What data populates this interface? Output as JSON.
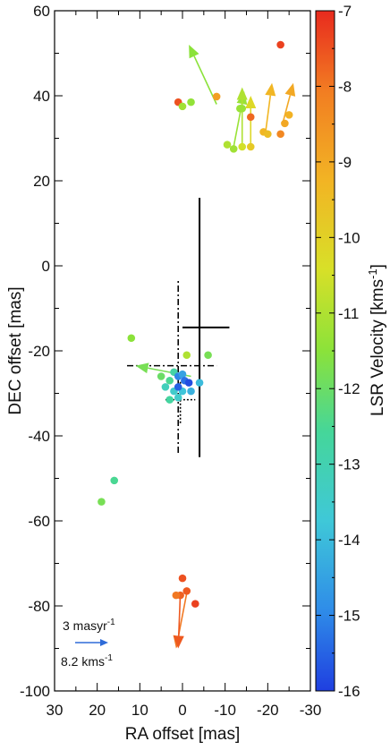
{
  "chart_data": {
    "type": "scatter",
    "xlabel": "RA offset [mas]",
    "ylabel": "DEC offset [mas]",
    "xlim": [
      30,
      -30
    ],
    "ylim": [
      -100,
      60
    ],
    "x_inverted": true,
    "xticks": [
      30,
      20,
      10,
      0,
      -10,
      -20,
      -30
    ],
    "yticks": [
      60,
      40,
      20,
      0,
      -20,
      -40,
      -60,
      -80,
      -100
    ],
    "colorbar": {
      "label": "LSR Velocity [kms",
      "label_sup": "-1",
      "label_close": "]",
      "range": [
        -16,
        -7
      ],
      "ticks": [
        -7,
        -8,
        -9,
        -10,
        -11,
        -12,
        -13,
        -14,
        -15,
        -16
      ],
      "colormap": "rainbow (blue to red)"
    },
    "scale_key": {
      "line1": "3 masyr",
      "line1_sup": "-1",
      "line2": "8.2 kms",
      "line2_sup": "-1",
      "proper_motion_masyr": 3,
      "arrow_color": "#2e6bd8"
    },
    "points": [
      {
        "x": -23,
        "y": 52,
        "v": -7.3
      },
      {
        "x": 1,
        "y": 38.5,
        "v": -7.5
      },
      {
        "x": 0,
        "y": 37.5,
        "v": -11.2
      },
      {
        "x": -2,
        "y": 38.5,
        "v": -11.4
      },
      {
        "x": -8,
        "y": 39.8,
        "v": -8.8
      },
      {
        "x": -16,
        "y": 35,
        "v": -7.8
      },
      {
        "x": -23,
        "y": 31,
        "v": -8.3
      },
      {
        "x": -24,
        "y": 33.5,
        "v": -9.0
      },
      {
        "x": -25,
        "y": 35.5,
        "v": -9.2
      },
      {
        "x": -19,
        "y": 31.5,
        "v": -9.3
      },
      {
        "x": -20,
        "y": 31,
        "v": -9.5
      },
      {
        "x": -16,
        "y": 28,
        "v": -9.8
      },
      {
        "x": -14,
        "y": 28,
        "v": -10.5
      },
      {
        "x": -12,
        "y": 27.5,
        "v": -11.2
      },
      {
        "x": -10.5,
        "y": 28.5,
        "v": -11.0
      },
      {
        "x": -14,
        "y": 37,
        "v": -11.3
      },
      {
        "x": -13.5,
        "y": 37,
        "v": -11.3
      },
      {
        "x": 12,
        "y": -17,
        "v": -11.5
      },
      {
        "x": -6,
        "y": -21,
        "v": -11.8
      },
      {
        "x": -1,
        "y": -21,
        "v": -11.0
      },
      {
        "x": 5,
        "y": -26,
        "v": -12.0
      },
      {
        "x": 3,
        "y": -27,
        "v": -12.5
      },
      {
        "x": 2,
        "y": -25,
        "v": -12.8
      },
      {
        "x": 4,
        "y": -28.5,
        "v": -13.2
      },
      {
        "x": 2,
        "y": -29.5,
        "v": -13.5
      },
      {
        "x": 3,
        "y": -31.5,
        "v": -12.7
      },
      {
        "x": 1,
        "y": -26,
        "v": -15.0
      },
      {
        "x": 0,
        "y": -25.5,
        "v": -14.5
      },
      {
        "x": -0.5,
        "y": -27,
        "v": -15.3
      },
      {
        "x": -1.5,
        "y": -27.5,
        "v": -15.8
      },
      {
        "x": -2,
        "y": -29.5,
        "v": -14.2
      },
      {
        "x": 0,
        "y": -29.5,
        "v": -13.8
      },
      {
        "x": 1,
        "y": -31,
        "v": -13.5
      },
      {
        "x": -4,
        "y": -27.5,
        "v": -14.0
      },
      {
        "x": 1,
        "y": -28.5,
        "v": -15.5
      },
      {
        "x": 16,
        "y": -50.5,
        "v": -12.5
      },
      {
        "x": 19,
        "y": -55.5,
        "v": -11.8
      },
      {
        "x": 0,
        "y": -73.5,
        "v": -7.5
      },
      {
        "x": -1,
        "y": -76.5,
        "v": -7.6
      },
      {
        "x": 0.5,
        "y": -77.5,
        "v": -7.7
      },
      {
        "x": 1.5,
        "y": -77.5,
        "v": -8.0
      },
      {
        "x": -3,
        "y": -79.5,
        "v": -7.3
      }
    ],
    "arrows": [
      {
        "x1": -8,
        "y1": 38,
        "x2": -1.5,
        "y2": 52,
        "v": -11.5
      },
      {
        "x1": -12,
        "y1": 28,
        "x2": -14.5,
        "y2": 41,
        "v": -11.3
      },
      {
        "x1": -14,
        "y1": 28,
        "x2": -14,
        "y2": 42,
        "v": -11.0
      },
      {
        "x1": -16,
        "y1": 28,
        "x2": -16,
        "y2": 40,
        "v": -10.2
      },
      {
        "x1": -19.5,
        "y1": 31.5,
        "x2": -21,
        "y2": 43,
        "v": -9.3
      },
      {
        "x1": -23.5,
        "y1": 33.5,
        "x2": -26,
        "y2": 43,
        "v": -9.0
      },
      {
        "x1": -2,
        "y1": -26,
        "x2": 11,
        "y2": -23.5,
        "v": -11.8
      },
      {
        "x1": -1,
        "y1": -77,
        "x2": 1.5,
        "y2": -90,
        "v": -8.0
      },
      {
        "x1": 0.5,
        "y1": -77,
        "x2": 1,
        "y2": -90,
        "v": -7.6
      }
    ],
    "crosses": [
      {
        "style": "solid",
        "x": -4,
        "y_min": -45,
        "y_max": 16,
        "x_min": -11,
        "x_max": 0,
        "y_h": -14.5
      },
      {
        "style": "dashdot",
        "x": 1,
        "y_min": -44,
        "y_max": -3,
        "x_min": 13,
        "x_max": -8,
        "y_h": -23.5
      },
      {
        "style": "dotted",
        "x": 0.5,
        "y_min": -37,
        "y_max": -27,
        "x_min": 4,
        "x_max": -3,
        "y_h": -31.5
      }
    ]
  }
}
